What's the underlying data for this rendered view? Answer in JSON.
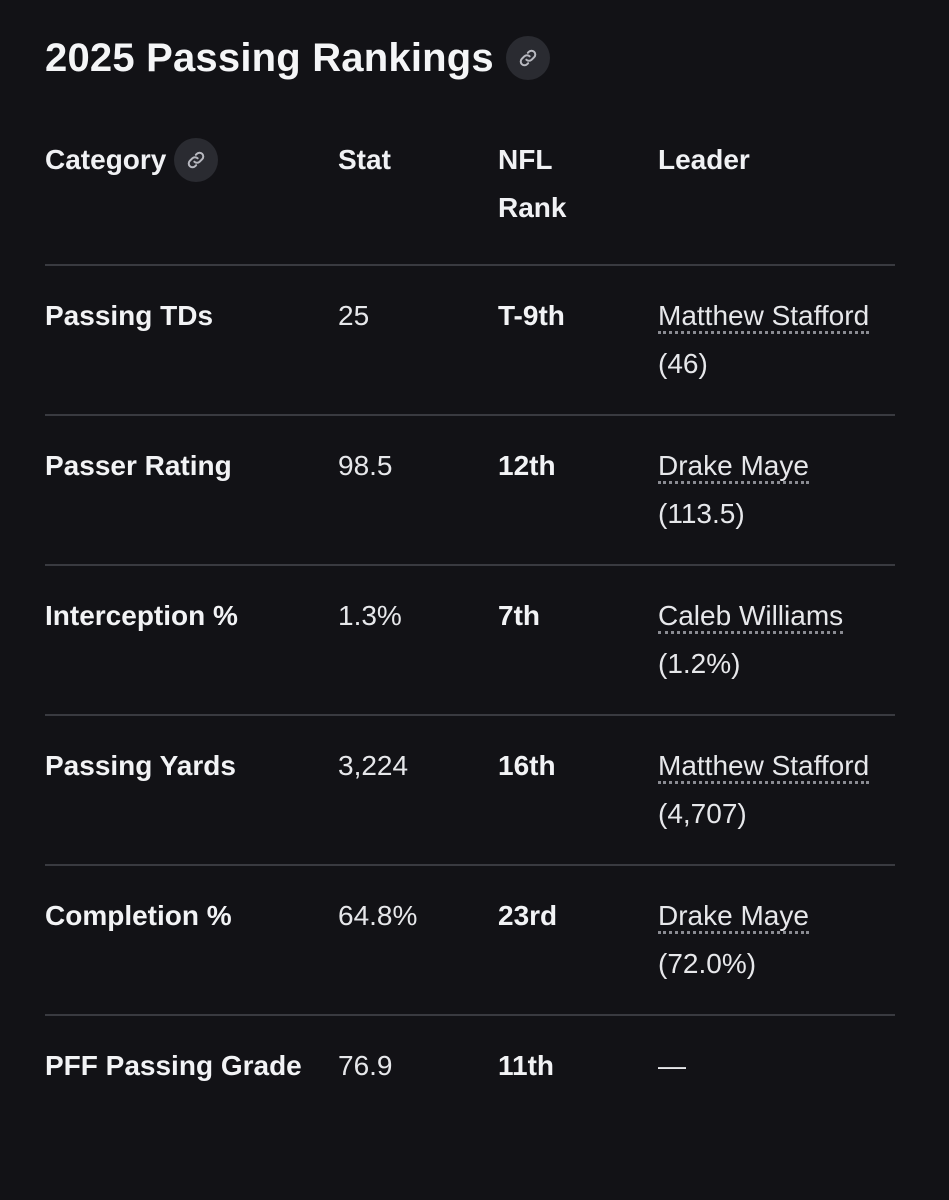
{
  "title": "2025 Passing Rankings",
  "columns": {
    "category": "Category",
    "stat": "Stat",
    "rank_line1": "NFL",
    "rank_line2": "Rank",
    "leader": "Leader"
  },
  "rows": [
    {
      "category": "Passing TDs",
      "stat": "25",
      "rank": "T-9th",
      "leader_name": "Matthew Stafford",
      "leader_value": " (46)"
    },
    {
      "category": "Passer Rating",
      "stat": "98.5",
      "rank": "12th",
      "leader_name": "Drake Maye",
      "leader_value": " (113.5)"
    },
    {
      "category": "Interception %",
      "stat": "1.3%",
      "rank": "7th",
      "leader_name": "Caleb Williams",
      "leader_value": " (1.2%)"
    },
    {
      "category": "Passing Yards",
      "stat": "3,224",
      "rank": "16th",
      "leader_name": "Matthew Stafford",
      "leader_value": " (4,707)"
    },
    {
      "category": "Completion %",
      "stat": "64.8%",
      "rank": "23rd",
      "leader_name": "Drake Maye",
      "leader_value": " (72.0%)"
    },
    {
      "category": "PFF Passing Grade",
      "stat": "76.9",
      "rank": "11th",
      "leader_name": "",
      "leader_value": "—"
    }
  ],
  "icons": {
    "title_link": "link-icon",
    "header_link": "link-icon"
  },
  "colors": {
    "background": "#121216",
    "text": "#ecedf0",
    "divider": "#393a40",
    "icon_bg": "#2a2b31"
  }
}
